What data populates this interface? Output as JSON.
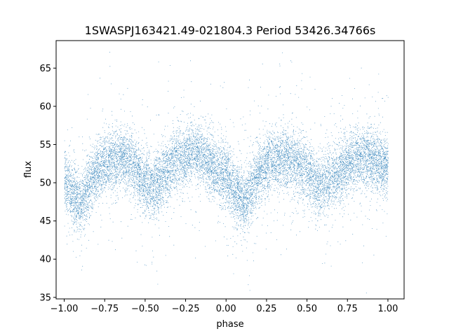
{
  "chart_data": {
    "type": "scatter",
    "title": "1SWASPJ163421.49-021804.3 Period 53426.34766s",
    "xlabel": "phase",
    "ylabel": "flux",
    "xlim": [
      -1.05,
      1.1
    ],
    "ylim": [
      34.8,
      68.6
    ],
    "xticks": [
      -1.0,
      -0.75,
      -0.5,
      -0.25,
      0.0,
      0.25,
      0.5,
      0.75,
      1.0
    ],
    "xtick_labels": [
      "−1.00",
      "−0.75",
      "−0.50",
      "−0.25",
      "0.00",
      "0.25",
      "0.50",
      "0.75",
      "1.00"
    ],
    "yticks": [
      35,
      40,
      45,
      50,
      55,
      60,
      65
    ],
    "ytick_labels": [
      "35",
      "40",
      "45",
      "50",
      "55",
      "60",
      "65"
    ],
    "grid": false,
    "marker_color": "#1f77b4",
    "series": [
      {
        "phase": [
          -1.0,
          -0.95,
          -0.9,
          -0.85,
          -0.8,
          -0.75,
          -0.7,
          -0.65,
          -0.6,
          -0.55,
          -0.5,
          -0.45,
          -0.4,
          -0.35,
          -0.3,
          -0.25,
          -0.2,
          -0.15,
          -0.1,
          -0.05,
          0.0,
          0.05,
          0.1,
          0.15,
          0.2,
          0.25,
          0.3,
          0.35,
          0.4,
          0.45,
          0.5,
          0.55,
          0.6,
          0.65,
          0.7,
          0.75,
          0.8,
          0.85,
          0.9,
          0.95,
          1.0
        ],
        "flux_mean": [
          50.5,
          48.5,
          47.5,
          49.5,
          51.5,
          52.5,
          53.2,
          53.5,
          53.0,
          51.5,
          50.0,
          49.5,
          50.5,
          52.0,
          53.0,
          53.5,
          54.0,
          53.8,
          52.5,
          51.5,
          51.0,
          49.0,
          47.5,
          49.0,
          51.0,
          52.5,
          53.0,
          53.2,
          52.8,
          52.5,
          51.5,
          50.0,
          49.8,
          50.5,
          51.5,
          52.5,
          53.2,
          53.5,
          53.0,
          52.5,
          52.0
        ],
        "scatter_sd": 2.0,
        "point_count": 14000
      }
    ]
  }
}
